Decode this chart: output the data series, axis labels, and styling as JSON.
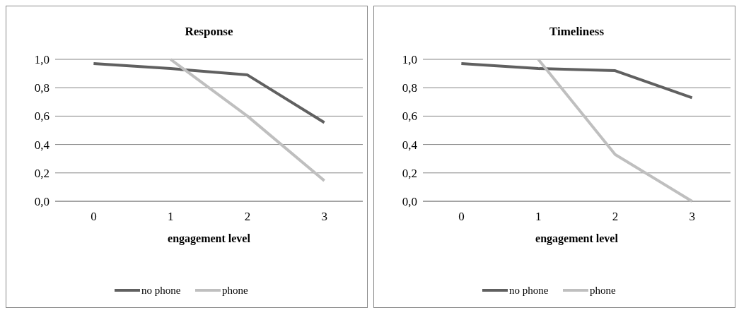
{
  "chart_data": [
    {
      "type": "line",
      "title": "Response",
      "xlabel": "engagement level",
      "categories": [
        "0",
        "1",
        "2",
        "3"
      ],
      "ylim": [
        0,
        1
      ],
      "yticks": [
        {
          "value": 0,
          "label": "0,0"
        },
        {
          "value": 0.2,
          "label": "0,2"
        },
        {
          "value": 0.4,
          "label": "0,4"
        },
        {
          "value": 0.6,
          "label": "0,6"
        },
        {
          "value": 0.8,
          "label": "0,8"
        },
        {
          "value": 1,
          "label": "1,0"
        }
      ],
      "grid": "y",
      "legend": "bottom",
      "marker": "none",
      "series": [
        {
          "name": "no phone",
          "color": "#606060",
          "values": [
            0.97,
            0.935,
            0.89,
            0.555
          ]
        },
        {
          "name": "phone",
          "color": "#bfbfbf",
          "values": [
            null,
            1.0,
            0.6,
            0.145
          ]
        }
      ]
    },
    {
      "type": "line",
      "title": "Timeliness",
      "xlabel": "engagement level",
      "categories": [
        "0",
        "1",
        "2",
        "3"
      ],
      "ylim": [
        0,
        1
      ],
      "yticks": [
        {
          "value": 0,
          "label": "0,0"
        },
        {
          "value": 0.2,
          "label": "0,2"
        },
        {
          "value": 0.4,
          "label": "0,4"
        },
        {
          "value": 0.6,
          "label": "0,6"
        },
        {
          "value": 0.8,
          "label": "0,8"
        },
        {
          "value": 1,
          "label": "1,0"
        }
      ],
      "grid": "y",
      "legend": "bottom",
      "marker": "none",
      "series": [
        {
          "name": "no phone",
          "color": "#606060",
          "values": [
            0.97,
            0.935,
            0.92,
            0.73
          ]
        },
        {
          "name": "phone",
          "color": "#bfbfbf",
          "values": [
            null,
            1.0,
            0.33,
            0.0
          ]
        }
      ]
    }
  ]
}
